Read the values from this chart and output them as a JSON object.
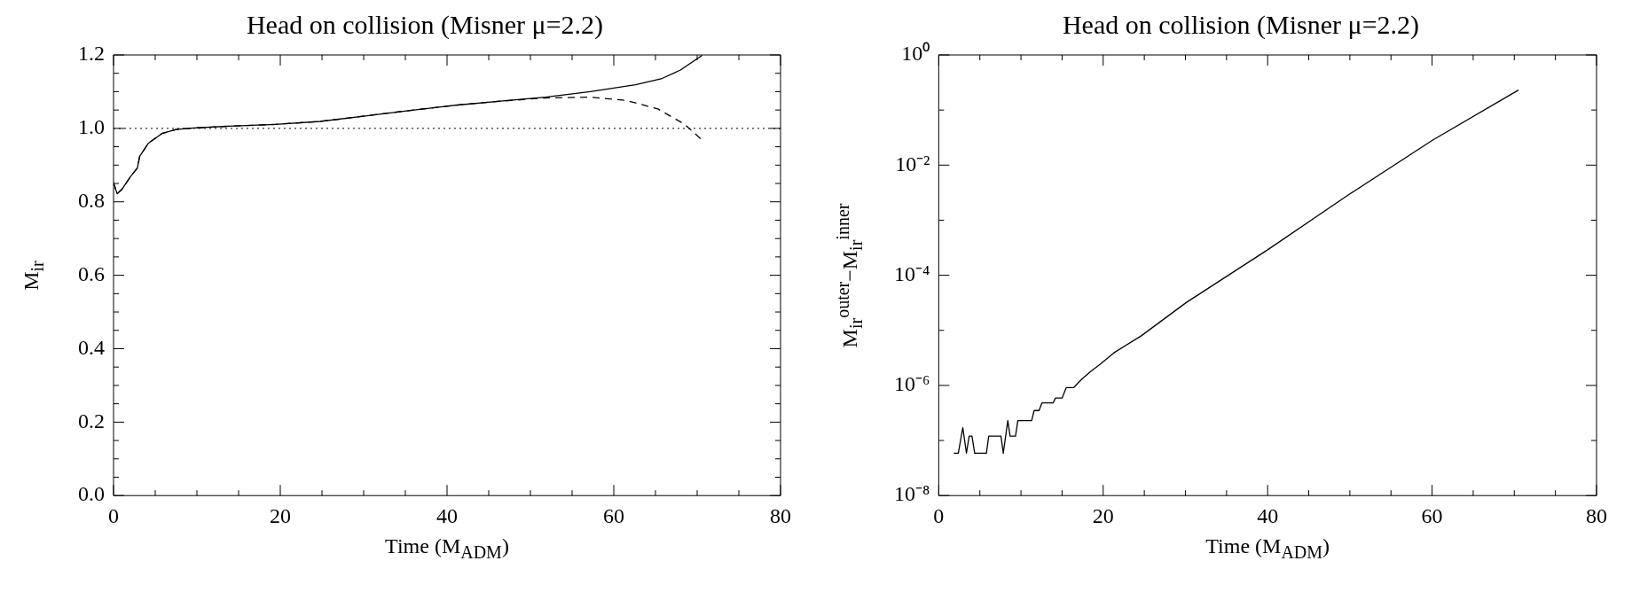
{
  "chart_data": [
    {
      "type": "line",
      "title": "Head on collision (Misner μ=2.2)",
      "xlabel": "Time (M$_{ADM}$)",
      "ylabel": "M$_{ir}$",
      "marker": "none",
      "xlim": [
        0,
        80
      ],
      "xticks": [
        0,
        {
          "value": 5,
          "label": null
        },
        {
          "value": 10,
          "label": null
        },
        {
          "value": 15,
          "label": null
        },
        20,
        {
          "value": 25,
          "label": null
        },
        {
          "value": 30,
          "label": null
        },
        {
          "value": 35,
          "label": null
        },
        40,
        {
          "value": 45,
          "label": null
        },
        {
          "value": 50,
          "label": null
        },
        {
          "value": 55,
          "label": null
        },
        60,
        {
          "value": 65,
          "label": null
        },
        {
          "value": 70,
          "label": null
        },
        {
          "value": 75,
          "label": null
        },
        80
      ],
      "ylim": [
        0,
        1.2
      ],
      "yticks": [
        {
          "value": 0,
          "label": "0.0"
        },
        {
          "value": 0.05,
          "label": null
        },
        {
          "value": 0.1,
          "label": null
        },
        {
          "value": 0.15,
          "label": null
        },
        0.2,
        {
          "value": 0.25,
          "label": null
        },
        {
          "value": 0.3,
          "label": null
        },
        {
          "value": 0.35,
          "label": null
        },
        0.4,
        {
          "value": 0.45,
          "label": null
        },
        {
          "value": 0.5,
          "label": null
        },
        {
          "value": 0.55,
          "label": null
        },
        0.6,
        {
          "value": 0.65,
          "label": null
        },
        {
          "value": 0.7,
          "label": null
        },
        {
          "value": 0.75,
          "label": null
        },
        0.8,
        {
          "value": 0.85,
          "label": null
        },
        {
          "value": 0.9,
          "label": null
        },
        {
          "value": 0.95,
          "label": null
        },
        {
          "value": 1,
          "label": "1.0"
        },
        {
          "value": 1.05,
          "label": null
        },
        {
          "value": 1.1,
          "label": null
        },
        {
          "value": 1.15,
          "label": null
        },
        1.2
      ],
      "ref_lines": [
        {
          "axis": "y",
          "value": 1,
          "line_style": "dotted",
          "color": "#000000"
        }
      ],
      "series": [
        {
          "color": "#000000",
          "line_style": "solid",
          "x": [
            0,
            0.43,
            0.97,
            2.05,
            2.86,
            3.14,
            4.2,
            5.8,
            7.5,
            9.6,
            13.9,
            19.4,
            24.8,
            30.2,
            35.6,
            41.0,
            46.4,
            51.8,
            57.2,
            62.6,
            65.8,
            68.0,
            70.6
          ],
          "values": [
            0.852,
            0.822,
            0.833,
            0.869,
            0.892,
            0.924,
            0.96,
            0.986,
            0.997,
            1.001,
            1.006,
            1.011,
            1.019,
            1.034,
            1.049,
            1.063,
            1.074,
            1.085,
            1.1,
            1.119,
            1.136,
            1.159,
            1.199
          ]
        },
        {
          "color": "#000000",
          "line_style": "dashed",
          "x": [
            0,
            0.43,
            0.97,
            2.05,
            2.86,
            3.14,
            4.2,
            5.8,
            7.5,
            9.6,
            13.9,
            19.4,
            24.8,
            30.2,
            35.6,
            41.0,
            46.4,
            51.8,
            57.2,
            61.5,
            65.3,
            68.5,
            70.7
          ],
          "values": [
            0.852,
            0.822,
            0.833,
            0.869,
            0.892,
            0.924,
            0.96,
            0.986,
            0.997,
            1.001,
            1.006,
            1.011,
            1.019,
            1.034,
            1.049,
            1.063,
            1.074,
            1.083,
            1.085,
            1.076,
            1.053,
            1.011,
            0.966
          ]
        }
      ]
    },
    {
      "type": "line",
      "title": "Head on collision (Misner μ=2.2)",
      "xlabel": "Time (M$_{ADM}$)",
      "ylabel": "M$_{ir}$$^{outer}$−M$_{ir}$$^{inner}$",
      "marker": "none",
      "log": "y",
      "xlim": [
        0,
        80
      ],
      "xticks": [
        0,
        {
          "value": 5,
          "label": null
        },
        {
          "value": 10,
          "label": null
        },
        {
          "value": 15,
          "label": null
        },
        20,
        {
          "value": 25,
          "label": null
        },
        {
          "value": 30,
          "label": null
        },
        {
          "value": 35,
          "label": null
        },
        40,
        {
          "value": 45,
          "label": null
        },
        {
          "value": 50,
          "label": null
        },
        {
          "value": 55,
          "label": null
        },
        60,
        {
          "value": 65,
          "label": null
        },
        {
          "value": 70,
          "label": null
        },
        {
          "value": 75,
          "label": null
        },
        80
      ],
      "ylim": [
        1e-08,
        1
      ],
      "yticks": [
        {
          "value": 1e-08,
          "label": "10⁻⁸"
        },
        {
          "value": 1e-07,
          "label": null
        },
        {
          "value": 1e-06,
          "label": "10⁻⁶"
        },
        {
          "value": 1e-05,
          "label": null
        },
        {
          "value": 0.0001,
          "label": "10⁻⁴"
        },
        {
          "value": 0.001,
          "label": null
        },
        {
          "value": 0.01,
          "label": "10⁻²"
        },
        {
          "value": 0.1,
          "label": null
        },
        {
          "value": 1,
          "label": "10⁰"
        }
      ],
      "series": [
        {
          "color": "#000000",
          "line_style": "solid",
          "x": [
            1.82,
            2.38,
            2.93,
            3.37,
            3.7,
            4.04,
            4.37,
            5.8,
            6.08,
            7.57,
            7.85,
            8.4,
            8.68,
            9.34,
            9.62,
            11.3,
            11.6,
            12.2,
            12.55,
            13.9,
            14.2,
            15.0,
            15.5,
            16.4,
            17.4,
            18.5,
            19.6,
            21.3,
            24.6,
            30.1,
            40,
            50,
            60,
            70.5
          ],
          "values": [
            5.9e-08,
            5.9e-08,
            1.7e-07,
            5.9e-08,
            1.2e-07,
            1.2e-07,
            5.9e-08,
            5.9e-08,
            1.2e-07,
            1.2e-07,
            5.9e-08,
            2.3e-07,
            1.2e-07,
            1.2e-07,
            2.3e-07,
            2.3e-07,
            3.5e-07,
            3.5e-07,
            4.8e-07,
            4.8e-07,
            5.9e-07,
            5.9e-07,
            9.1e-07,
            9.1e-07,
            1.3e-06,
            1.8e-06,
            2.4e-06,
            3.9e-06,
            7.9e-06,
            3.2e-05,
            0.00029,
            0.003,
            0.028,
            0.23
          ]
        }
      ]
    }
  ]
}
